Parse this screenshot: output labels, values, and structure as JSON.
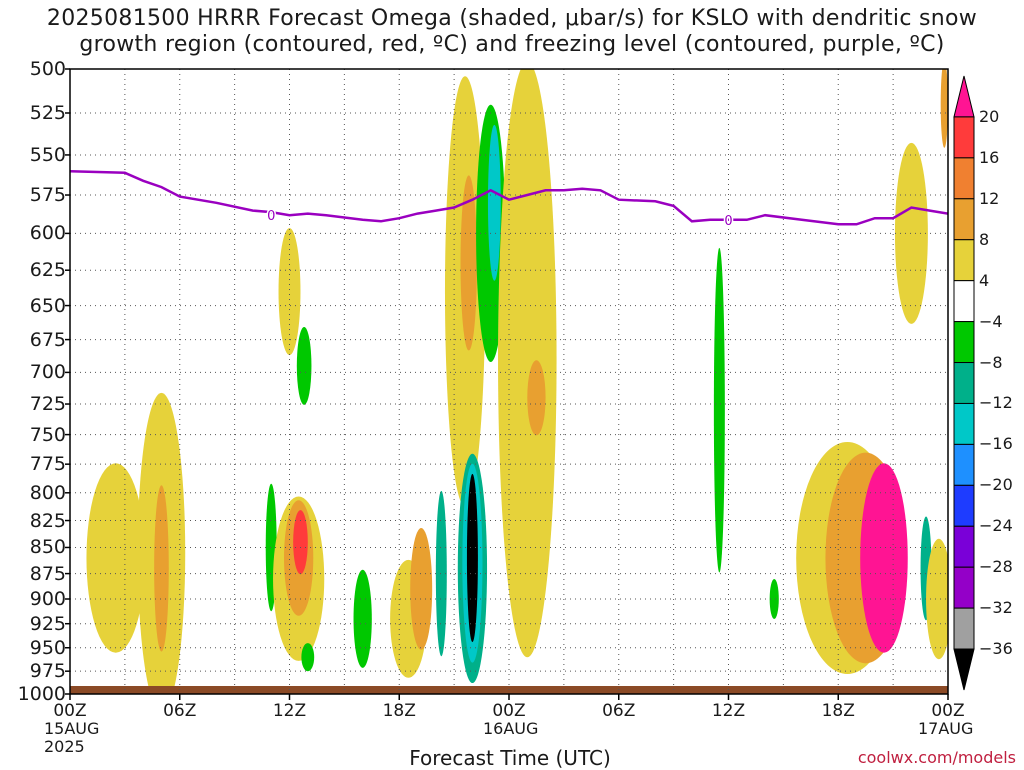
{
  "title": {
    "line1": "2025081500 HRRR Forecast Omega (shaded, μbar/s) for KSLO with dendritic snow",
    "line2": "growth region (contoured, red, ºC) and freezing level (contoured, purple, ºC)"
  },
  "chart_data": {
    "type": "heatmap",
    "xlabel": "Forecast Time (UTC)",
    "x_ticks": [
      "00Z",
      "06Z",
      "12Z",
      "18Z",
      "00Z",
      "06Z",
      "12Z",
      "18Z",
      "00Z"
    ],
    "x_tick_hours": [
      0,
      6,
      12,
      18,
      24,
      30,
      36,
      42,
      48
    ],
    "x_date_labels": [
      {
        "hour": 0,
        "text": "15AUG"
      },
      {
        "hour": 0,
        "text": "2025"
      },
      {
        "hour": 24,
        "text": "16AUG"
      },
      {
        "hour": 48,
        "text": "17AUG"
      }
    ],
    "xlim_hours": [
      0,
      48
    ],
    "ylabel": "",
    "y_ticks": [
      500,
      525,
      550,
      575,
      600,
      625,
      650,
      675,
      700,
      725,
      750,
      775,
      800,
      825,
      850,
      875,
      900,
      925,
      950,
      975,
      1000
    ],
    "ylim_mb": [
      1000,
      500
    ],
    "y_scale": "log-pressure",
    "grid": true,
    "colorbar": {
      "labels": [
        "20",
        "16",
        "12",
        "8",
        "4",
        "−4",
        "−8",
        "−12",
        "−16",
        "−20",
        "−24",
        "−28",
        "−32",
        "−36"
      ],
      "colors": [
        "#ff1493",
        "#ff3b3b",
        "#f08030",
        "#e8a030",
        "#e6d23a",
        "#ffffff",
        "#00c800",
        "#00b08a",
        "#00c8c8",
        "#1e90ff",
        "#1e3cff",
        "#7a00d8",
        "#9400c8",
        "#a0a0a0",
        "#000000"
      ]
    },
    "freezing_level": {
      "label": "0",
      "color": "#9a00c0",
      "points": [
        [
          0,
          560
        ],
        [
          3,
          561
        ],
        [
          4,
          566
        ],
        [
          5,
          570
        ],
        [
          6,
          576
        ],
        [
          8,
          580
        ],
        [
          10,
          585
        ],
        [
          11,
          586
        ],
        [
          12,
          588
        ],
        [
          13,
          587
        ],
        [
          14,
          588
        ],
        [
          16,
          591
        ],
        [
          17,
          592
        ],
        [
          18,
          590
        ],
        [
          19,
          587
        ],
        [
          20,
          585
        ],
        [
          21,
          583
        ],
        [
          22,
          578
        ],
        [
          23,
          572
        ],
        [
          24,
          578
        ],
        [
          25,
          575
        ],
        [
          26,
          572
        ],
        [
          27,
          572
        ],
        [
          28,
          571
        ],
        [
          29,
          572
        ],
        [
          30,
          578
        ],
        [
          32,
          579
        ],
        [
          33,
          582
        ],
        [
          34,
          592
        ],
        [
          35,
          591
        ],
        [
          36,
          591
        ],
        [
          37,
          591
        ],
        [
          38,
          588
        ],
        [
          40,
          591
        ],
        [
          42,
          594
        ],
        [
          43,
          594
        ],
        [
          44,
          590
        ],
        [
          45,
          590
        ],
        [
          46,
          583
        ],
        [
          47,
          585
        ],
        [
          48,
          587
        ]
      ]
    },
    "omega_regions": [
      {
        "cx": 2.5,
        "cy": 860,
        "rx": 1.6,
        "ry": 90,
        "value": 5
      },
      {
        "cx": 5.0,
        "cy": 855,
        "rx": 1.3,
        "ry": 150,
        "value": 5
      },
      {
        "cx": 5.0,
        "cy": 870,
        "rx": 0.4,
        "ry": 80,
        "value": 9
      },
      {
        "cx": 12.0,
        "cy": 640,
        "rx": 0.6,
        "ry": 45,
        "value": 5
      },
      {
        "cx": 12.8,
        "cy": 695,
        "rx": 0.4,
        "ry": 30,
        "value": -6
      },
      {
        "cx": 11.0,
        "cy": 850,
        "rx": 0.3,
        "ry": 60,
        "value": -6
      },
      {
        "cx": 12.5,
        "cy": 880,
        "rx": 1.4,
        "ry": 80,
        "value": 5
      },
      {
        "cx": 12.5,
        "cy": 860,
        "rx": 0.8,
        "ry": 55,
        "value": 11
      },
      {
        "cx": 12.6,
        "cy": 845,
        "rx": 0.4,
        "ry": 30,
        "value": 18
      },
      {
        "cx": 13.0,
        "cy": 960,
        "rx": 0.35,
        "ry": 15,
        "value": -6
      },
      {
        "cx": 16.0,
        "cy": 920,
        "rx": 0.5,
        "ry": 50,
        "value": -6
      },
      {
        "cx": 18.5,
        "cy": 920,
        "rx": 1.0,
        "ry": 60,
        "value": 5
      },
      {
        "cx": 19.2,
        "cy": 890,
        "rx": 0.6,
        "ry": 60,
        "value": 9
      },
      {
        "cx": 20.3,
        "cy": 875,
        "rx": 0.3,
        "ry": 80,
        "value": -8
      },
      {
        "cx": 21.6,
        "cy": 640,
        "rx": 1.1,
        "ry": 150,
        "value": 5
      },
      {
        "cx": 21.8,
        "cy": 620,
        "rx": 0.45,
        "ry": 60,
        "value": 9
      },
      {
        "cx": 22.0,
        "cy": 870,
        "rx": 0.8,
        "ry": 110,
        "value": -8
      },
      {
        "cx": 22.0,
        "cy": 865,
        "rx": 0.55,
        "ry": 95,
        "value": -14
      },
      {
        "cx": 22.0,
        "cy": 860,
        "rx": 0.3,
        "ry": 80,
        "value": -36
      },
      {
        "cx": 23.0,
        "cy": 600,
        "rx": 0.8,
        "ry": 85,
        "value": -6
      },
      {
        "cx": 23.2,
        "cy": 580,
        "rx": 0.35,
        "ry": 50,
        "value": -12
      },
      {
        "cx": 25.0,
        "cy": 690,
        "rx": 1.6,
        "ry": 220,
        "value": 5
      },
      {
        "cx": 25.5,
        "cy": 720,
        "rx": 0.5,
        "ry": 30,
        "value": 9
      },
      {
        "cx": 35.5,
        "cy": 730,
        "rx": 0.3,
        "ry": 130,
        "value": -6
      },
      {
        "cx": 38.5,
        "cy": 900,
        "rx": 0.25,
        "ry": 20,
        "value": -6
      },
      {
        "cx": 42.5,
        "cy": 860,
        "rx": 2.8,
        "ry": 110,
        "value": 5
      },
      {
        "cx": 43.5,
        "cy": 860,
        "rx": 2.2,
        "ry": 100,
        "value": 9
      },
      {
        "cx": 44.5,
        "cy": 860,
        "rx": 1.3,
        "ry": 90,
        "value": 20
      },
      {
        "cx": 46.0,
        "cy": 600,
        "rx": 0.9,
        "ry": 60,
        "value": 5
      },
      {
        "cx": 46.8,
        "cy": 870,
        "rx": 0.3,
        "ry": 50,
        "value": -8
      },
      {
        "cx": 47.5,
        "cy": 900,
        "rx": 0.7,
        "ry": 60,
        "value": 5
      },
      {
        "cx": 47.8,
        "cy": 520,
        "rx": 0.2,
        "ry": 25,
        "value": 9
      }
    ]
  },
  "credit": "coolwx.com/models"
}
